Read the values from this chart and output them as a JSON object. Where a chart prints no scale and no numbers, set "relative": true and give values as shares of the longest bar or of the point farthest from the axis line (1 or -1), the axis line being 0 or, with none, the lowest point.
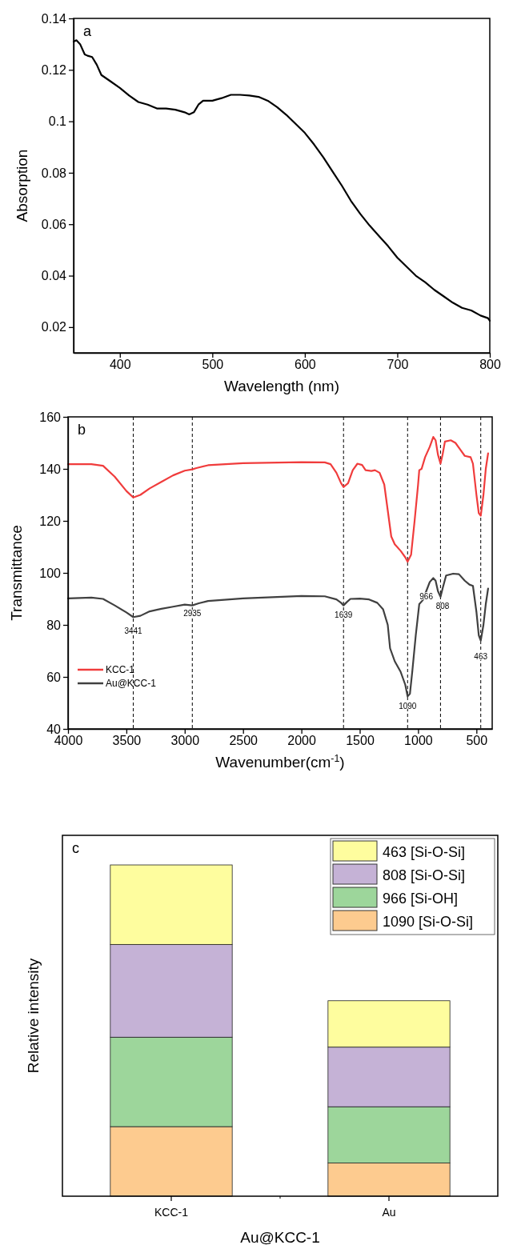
{
  "chart_data": [
    {
      "type": "line",
      "xlabel": "Wavelength (nm)",
      "ylabel": "Absorption",
      "annotations": [
        "a"
      ],
      "xlim": [
        350,
        800
      ],
      "xticks": [
        400,
        500,
        600,
        700,
        800
      ],
      "ylim": [
        0.01,
        0.14
      ],
      "yticks": [
        0.02,
        0.04,
        0.06,
        0.08,
        0.1,
        0.12,
        0.14
      ],
      "series": [
        {
          "color": "#000000",
          "x": [
            350,
            353,
            357,
            362,
            365,
            370,
            375,
            380,
            390,
            400,
            410,
            420,
            430,
            440,
            450,
            460,
            470,
            475,
            480,
            485,
            490,
            500,
            510,
            520,
            530,
            540,
            550,
            560,
            570,
            580,
            590,
            600,
            610,
            620,
            630,
            640,
            650,
            660,
            670,
            680,
            690,
            700,
            710,
            720,
            730,
            740,
            750,
            760,
            770,
            780,
            790,
            798,
            800
          ],
          "values": [
            0.131,
            0.1315,
            0.13,
            0.126,
            0.1255,
            0.125,
            0.122,
            0.118,
            0.1155,
            0.113,
            0.11,
            0.1075,
            0.1065,
            0.105,
            0.105,
            0.1045,
            0.1035,
            0.1027,
            0.1035,
            0.1065,
            0.108,
            0.108,
            0.109,
            0.1103,
            0.1103,
            0.11,
            0.1095,
            0.108,
            0.1055,
            0.1025,
            0.099,
            0.0955,
            0.091,
            0.086,
            0.0805,
            0.075,
            0.069,
            0.064,
            0.0595,
            0.0555,
            0.0515,
            0.047,
            0.0435,
            0.04,
            0.0375,
            0.0345,
            0.032,
            0.0295,
            0.0275,
            0.0265,
            0.0245,
            0.0235,
            0.0225
          ]
        }
      ]
    },
    {
      "type": "line",
      "xlabel": "Wavenumber(cm$^{-1}$)",
      "ylabel": "Transmittance",
      "legend": "bottom left",
      "annotations": [
        "b",
        {
          "text": "3441",
          "x": 3441,
          "y": 78
        },
        {
          "text": "2935",
          "x": 2935,
          "y": 84.5
        },
        {
          "text": "1639",
          "x": 1639,
          "y": 84
        },
        {
          "text": "1090",
          "x": 1090,
          "y": 49
        },
        {
          "text": "966",
          "x": 930,
          "y": 91
        },
        {
          "text": "808",
          "x": 790,
          "y": 87.5
        },
        {
          "text": "463",
          "x": 463,
          "y": 68
        }
      ],
      "xlim": [
        4000,
        365
      ],
      "xticks": [
        4000,
        3500,
        3000,
        2500,
        2000,
        1500,
        1000,
        500
      ],
      "ylim": [
        40,
        160
      ],
      "yticks": [
        40,
        60,
        80,
        100,
        120,
        140,
        160
      ],
      "ref_lines": [
        {
          "axis": "x",
          "value": 3441,
          "line_style": "dashed",
          "color": "#000000"
        },
        {
          "axis": "x",
          "value": 2935,
          "line_style": "dashed",
          "color": "#000000"
        },
        {
          "axis": "x",
          "value": 1639,
          "line_style": "dashed",
          "color": "#000000"
        },
        {
          "axis": "x",
          "value": 1090,
          "line_style": "dashed",
          "color": "#000000"
        },
        {
          "axis": "x",
          "value": 808,
          "line_style": "dashed",
          "color": "#000000"
        },
        {
          "axis": "x",
          "value": 463,
          "line_style": "dashed",
          "color": "#000000"
        }
      ],
      "series": [
        {
          "name": "KCC-1",
          "color": "#f03c3c",
          "x": [
            4000,
            3800,
            3700,
            3600,
            3500,
            3441,
            3380,
            3300,
            3200,
            3100,
            3000,
            2935,
            2900,
            2800,
            2500,
            2000,
            1800,
            1750,
            1700,
            1660,
            1639,
            1600,
            1560,
            1520,
            1480,
            1450,
            1400,
            1370,
            1330,
            1290,
            1260,
            1230,
            1200,
            1150,
            1110,
            1090,
            1060,
            1030,
            1000,
            990,
            970,
            940,
            900,
            870,
            850,
            830,
            808,
            790,
            770,
            720,
            680,
            640,
            600,
            550,
            530,
            500,
            480,
            463,
            440,
            420,
            400
          ],
          "values": [
            141.8,
            141.8,
            141.2,
            137,
            131.5,
            129,
            130,
            132.5,
            135,
            137.5,
            139.3,
            139.8,
            140.3,
            141.4,
            142.2,
            142.6,
            142.5,
            141.8,
            138.5,
            134.5,
            133,
            134.5,
            139.5,
            142,
            141.5,
            139.5,
            139.2,
            139.5,
            138.5,
            134,
            124,
            114,
            111,
            108.5,
            106,
            104.3,
            107,
            120,
            134,
            139.5,
            140,
            144.5,
            148.5,
            152.3,
            151,
            145.5,
            142,
            145.5,
            150.5,
            151,
            150,
            147.5,
            145,
            144.5,
            142,
            130,
            123,
            122,
            130,
            140,
            146
          ]
        },
        {
          "name": "Au@KCC-1",
          "color": "#404040",
          "x": [
            4000,
            3800,
            3700,
            3600,
            3500,
            3441,
            3380,
            3300,
            3200,
            3100,
            3000,
            2935,
            2880,
            2800,
            2500,
            2000,
            1800,
            1700,
            1660,
            1639,
            1610,
            1580,
            1500,
            1420,
            1350,
            1300,
            1260,
            1240,
            1200,
            1150,
            1110,
            1090,
            1070,
            1050,
            1020,
            990,
            960,
            930,
            900,
            870,
            850,
            830,
            808,
            790,
            760,
            700,
            650,
            600,
            560,
            530,
            500,
            480,
            463,
            440,
            420,
            400
          ],
          "values": [
            90.2,
            90.5,
            90,
            87.5,
            84.8,
            83,
            83.5,
            85.2,
            86.2,
            87,
            87.8,
            87.5,
            88.3,
            89.2,
            90.2,
            91.1,
            91,
            89.8,
            88.5,
            87.5,
            88.8,
            90,
            90.1,
            89.8,
            88.5,
            86,
            80,
            71,
            66,
            62,
            57,
            52.5,
            53.5,
            62,
            76,
            88,
            89.5,
            93,
            96.5,
            98,
            97,
            93,
            90.8,
            94,
            99,
            99.7,
            99.5,
            97,
            95.5,
            95,
            85,
            76,
            74,
            80,
            88,
            94
          ]
        }
      ]
    },
    {
      "type": "bar",
      "stacked": true,
      "relative": true,
      "xlabel": "Au@KCC-1",
      "ylabel": "Relative intensity",
      "legend": "top right",
      "annotations": [
        "c"
      ],
      "categories": [
        "KCC-1",
        "Au"
      ],
      "series": [
        {
          "name": "1090 [Si-O-Si]",
          "color": "#fdcb8f",
          "values": [
            0.21,
            0.1
          ]
        },
        {
          "name": "966 [Si-OH]",
          "color": "#9dd69b",
          "values": [
            0.27,
            0.17
          ]
        },
        {
          "name": "808 [Si-O-Si]",
          "color": "#c5b2d6",
          "values": [
            0.28,
            0.18
          ]
        },
        {
          "name": "463 [Si-O-Si]",
          "color": "#fefd9e",
          "values": [
            0.24,
            0.14
          ]
        }
      ]
    }
  ]
}
